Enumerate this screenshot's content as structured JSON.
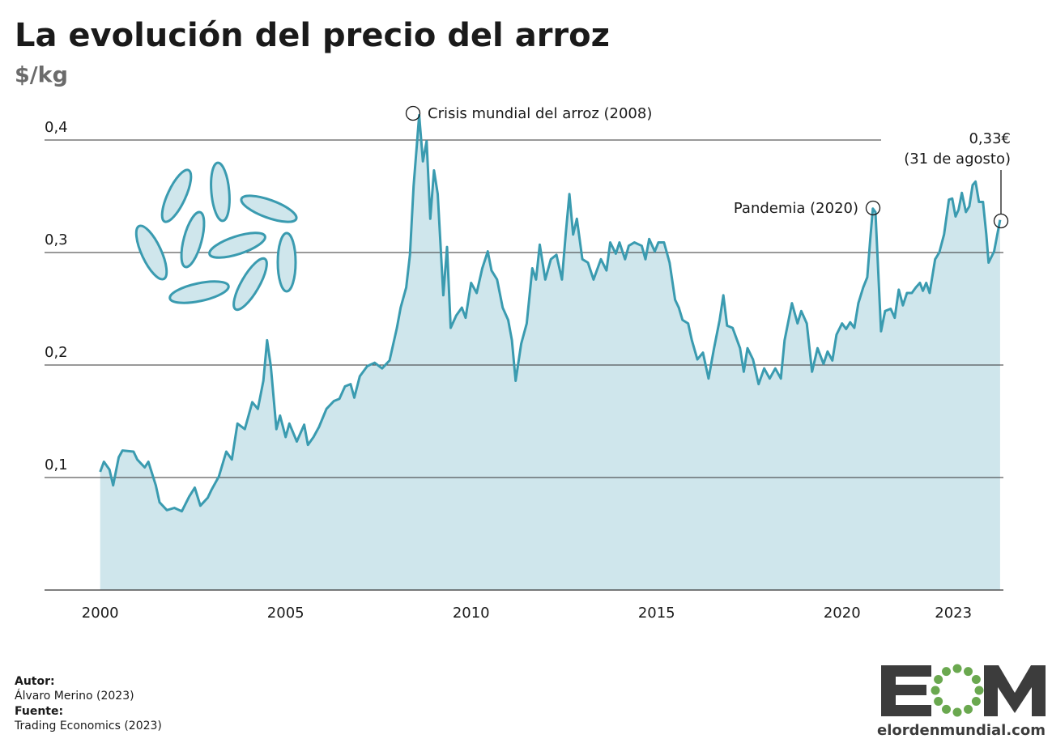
{
  "chart_data": {
    "type": "area",
    "title": "La evolución del precio del arroz",
    "subtitle": "$/kg",
    "color": "#3a9bb0",
    "fill": "#cfe6ec",
    "x": [
      2000.0,
      2000.1,
      2000.25,
      2000.35,
      2000.5,
      2000.6,
      2000.9,
      2001.0,
      2001.2,
      2001.3,
      2001.5,
      2001.6,
      2001.8,
      2002.0,
      2002.2,
      2002.4,
      2002.55,
      2002.7,
      2002.9,
      2003.0,
      2003.2,
      2003.4,
      2003.55,
      2003.7,
      2003.9,
      2004.1,
      2004.25,
      2004.4,
      2004.5,
      2004.6,
      2004.75,
      2004.85,
      2005.0,
      2005.1,
      2005.3,
      2005.5,
      2005.6,
      2005.75,
      2005.9,
      2006.1,
      2006.3,
      2006.45,
      2006.6,
      2006.75,
      2006.85,
      2007.0,
      2007.2,
      2007.4,
      2007.6,
      2007.8,
      2008.0,
      2008.1,
      2008.25,
      2008.35,
      2008.45,
      2008.55,
      2008.6,
      2008.7,
      2008.8,
      2008.9,
      2009.0,
      2009.1,
      2009.25,
      2009.35,
      2009.45,
      2009.6,
      2009.75,
      2009.85,
      2010.0,
      2010.15,
      2010.3,
      2010.45,
      2010.55,
      2010.7,
      2010.85,
      2011.0,
      2011.1,
      2011.2,
      2011.35,
      2011.5,
      2011.65,
      2011.75,
      2011.85,
      2012.0,
      2012.15,
      2012.3,
      2012.45,
      2012.55,
      2012.65,
      2012.75,
      2012.85,
      2013.0,
      2013.15,
      2013.3,
      2013.5,
      2013.65,
      2013.75,
      2013.9,
      2014.0,
      2014.15,
      2014.25,
      2014.4,
      2014.6,
      2014.7,
      2014.8,
      2014.95,
      2015.05,
      2015.2,
      2015.35,
      2015.5,
      2015.6,
      2015.7,
      2015.85,
      2015.95,
      2016.1,
      2016.25,
      2016.4,
      2016.55,
      2016.7,
      2016.8,
      2016.9,
      2017.05,
      2017.25,
      2017.35,
      2017.45,
      2017.6,
      2017.75,
      2017.9,
      2018.05,
      2018.2,
      2018.35,
      2018.45,
      2018.65,
      2018.8,
      2018.9,
      2019.05,
      2019.19,
      2019.34,
      2019.5,
      2019.61,
      2019.74,
      2019.85,
      2020.0,
      2020.11,
      2020.22,
      2020.33,
      2020.44,
      2020.57,
      2020.68,
      2020.76,
      2020.83,
      2020.9,
      2021.05,
      2021.16,
      2021.31,
      2021.42,
      2021.53,
      2021.64,
      2021.75,
      2021.88,
      2021.99,
      2022.1,
      2022.18,
      2022.27,
      2022.36,
      2022.51,
      2022.62,
      2022.75,
      2022.88,
      2022.97,
      2023.06,
      2023.14,
      2023.23,
      2023.34,
      2023.43,
      2023.52,
      2023.6,
      2023.69,
      2023.8,
      2023.89,
      2023.95,
      2024.1,
      2024.26
    ],
    "values": [
      0.105,
      0.114,
      0.107,
      0.093,
      0.118,
      0.124,
      0.123,
      0.116,
      0.109,
      0.114,
      0.093,
      0.078,
      0.071,
      0.073,
      0.07,
      0.083,
      0.091,
      0.075,
      0.082,
      0.089,
      0.101,
      0.123,
      0.116,
      0.148,
      0.143,
      0.167,
      0.161,
      0.186,
      0.222,
      0.199,
      0.143,
      0.155,
      0.136,
      0.148,
      0.132,
      0.147,
      0.129,
      0.136,
      0.145,
      0.161,
      0.168,
      0.17,
      0.181,
      0.183,
      0.171,
      0.19,
      0.199,
      0.202,
      0.197,
      0.204,
      0.233,
      0.251,
      0.269,
      0.298,
      0.359,
      0.401,
      0.422,
      0.381,
      0.399,
      0.33,
      0.373,
      0.352,
      0.262,
      0.305,
      0.233,
      0.244,
      0.251,
      0.242,
      0.273,
      0.264,
      0.286,
      0.301,
      0.284,
      0.276,
      0.251,
      0.24,
      0.222,
      0.186,
      0.219,
      0.237,
      0.286,
      0.276,
      0.307,
      0.276,
      0.294,
      0.298,
      0.276,
      0.316,
      0.352,
      0.316,
      0.33,
      0.294,
      0.291,
      0.276,
      0.294,
      0.284,
      0.309,
      0.299,
      0.309,
      0.294,
      0.306,
      0.309,
      0.306,
      0.294,
      0.312,
      0.301,
      0.309,
      0.309,
      0.291,
      0.258,
      0.251,
      0.24,
      0.237,
      0.222,
      0.205,
      0.211,
      0.188,
      0.215,
      0.24,
      0.262,
      0.235,
      0.233,
      0.215,
      0.194,
      0.215,
      0.205,
      0.183,
      0.197,
      0.188,
      0.197,
      0.188,
      0.222,
      0.255,
      0.237,
      0.248,
      0.237,
      0.194,
      0.215,
      0.201,
      0.212,
      0.204,
      0.227,
      0.237,
      0.232,
      0.238,
      0.233,
      0.255,
      0.269,
      0.278,
      0.312,
      0.339,
      0.336,
      0.23,
      0.248,
      0.25,
      0.242,
      0.267,
      0.253,
      0.264,
      0.264,
      0.269,
      0.273,
      0.266,
      0.273,
      0.264,
      0.294,
      0.3,
      0.316,
      0.347,
      0.348,
      0.332,
      0.338,
      0.353,
      0.336,
      0.341,
      0.36,
      0.363,
      0.345,
      0.345,
      0.316,
      0.291,
      0.301,
      0.329
    ],
    "xlim": [
      1998.5,
      2024.35
    ],
    "xticks": [
      2000,
      2005,
      2010,
      2015,
      2020,
      2023
    ],
    "ylim": [
      0,
      0.45
    ],
    "yticks": [
      {
        "value": 0.1,
        "label": "0,1"
      },
      {
        "value": 0.2,
        "label": "0,2"
      },
      {
        "value": 0.3,
        "label": "0,3"
      },
      {
        "value": 0.4,
        "label": "0,4"
      }
    ],
    "grid": true,
    "annotations": [
      "Crisis mundial del arroz (2008)",
      "Pandemia (2020)",
      "0,33€",
      "(31 de agosto)"
    ]
  },
  "footer": {
    "author_label": "Autor:",
    "author": "Álvaro Merino (2023)",
    "source_label": "Fuente:",
    "source": "Trading Economics (2023)"
  },
  "logo": {
    "site": "elordenmundial.com"
  }
}
